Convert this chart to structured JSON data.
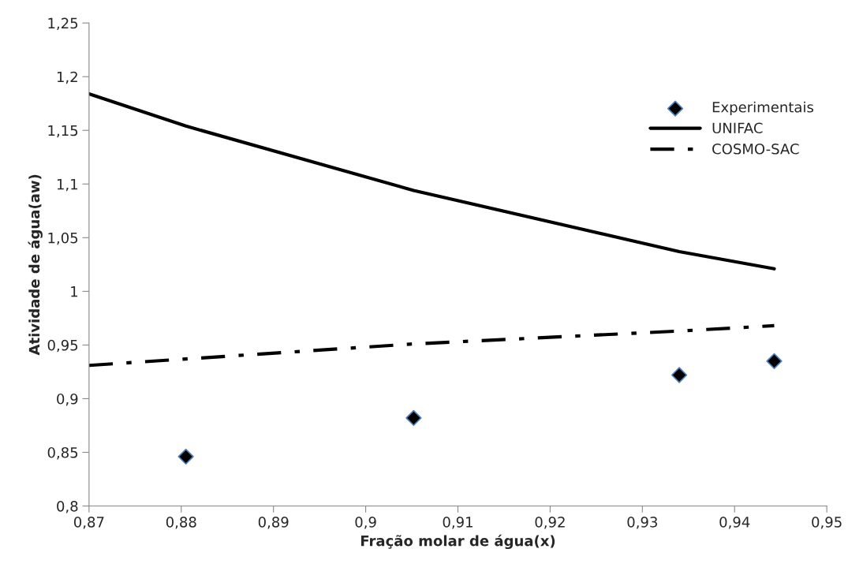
{
  "chart_data": {
    "type": "line",
    "xlabel": "Fração molar de água(x)",
    "ylabel": "Atividade de água(aw)",
    "xlim": [
      0.87,
      0.95
    ],
    "xticks": [
      {
        "value": 0.87,
        "label": "0,87"
      },
      {
        "value": 0.88,
        "label": "0,88"
      },
      {
        "value": 0.89,
        "label": "0,89"
      },
      {
        "value": 0.9,
        "label": "0,9"
      },
      {
        "value": 0.91,
        "label": "0,91"
      },
      {
        "value": 0.92,
        "label": "0,92"
      },
      {
        "value": 0.93,
        "label": "0,93"
      },
      {
        "value": 0.94,
        "label": "0,94"
      },
      {
        "value": 0.95,
        "label": "0,95"
      }
    ],
    "ylim": [
      0.8,
      1.25
    ],
    "yticks": [
      {
        "value": 0.8,
        "label": "0,8"
      },
      {
        "value": 0.85,
        "label": "0,85"
      },
      {
        "value": 0.9,
        "label": "0,9"
      },
      {
        "value": 0.95,
        "label": "0,95"
      },
      {
        "value": 1,
        "label": "1"
      },
      {
        "value": 1.05,
        "label": "1,05"
      },
      {
        "value": 1.1,
        "label": "1,1"
      },
      {
        "value": 1.15,
        "label": "1,15"
      },
      {
        "value": 1.2,
        "label": "1,2"
      },
      {
        "value": 1.25,
        "label": "1,25"
      }
    ],
    "grid": false,
    "legend": "right",
    "series": [
      {
        "name": "Experimentais",
        "type": "scatter",
        "marker": "diamond",
        "color": "#000000",
        "x": [
          0.8805,
          0.9052,
          0.934,
          0.9443
        ],
        "values": [
          0.846,
          0.882,
          0.922,
          0.935
        ]
      },
      {
        "name": "UNIFAC",
        "line_style": "solid",
        "color": "#000000",
        "x": [
          0.87,
          0.8805,
          0.9052,
          0.934,
          0.9443
        ],
        "values": [
          1.184,
          1.154,
          1.094,
          1.037,
          1.021
        ]
      },
      {
        "name": "COSMO-SAC",
        "line_style": "dashdot",
        "color": "#000000",
        "x": [
          0.87,
          0.8805,
          0.9052,
          0.934,
          0.9443
        ],
        "values": [
          0.931,
          0.937,
          0.951,
          0.963,
          0.968
        ]
      }
    ]
  }
}
